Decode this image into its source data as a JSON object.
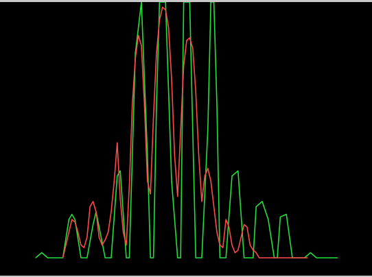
{
  "colors": {
    "background": "#000000",
    "frame": "#c8c8c8",
    "theory_line": "#22e03a",
    "measured_line": "#ff4a4a"
  },
  "chart_data": {
    "type": "line",
    "title": "",
    "xlabel": "",
    "ylabel": "",
    "grid": false,
    "legend": "none",
    "xlim": [
      0,
      1
    ],
    "ylim": [
      0,
      1
    ],
    "series": [
      {
        "color": "#22e03a",
        "x": [
          0.0,
          0.02,
          0.04,
          0.05,
          0.07,
          0.09,
          0.11,
          0.12,
          0.13,
          0.15,
          0.17,
          0.19,
          0.2,
          0.21,
          0.23,
          0.25,
          0.27,
          0.28,
          0.3,
          0.31,
          0.33,
          0.35,
          0.37,
          0.38,
          0.39,
          0.4,
          0.41,
          0.43,
          0.45,
          0.47,
          0.48,
          0.49,
          0.5,
          0.51,
          0.53,
          0.55,
          0.57,
          0.58,
          0.59,
          0.6,
          0.61,
          0.63,
          0.65,
          0.67,
          0.69,
          0.7,
          0.72,
          0.73,
          0.75,
          0.77,
          0.79,
          0.8,
          0.81,
          0.83,
          0.85,
          0.87,
          0.88,
          0.89,
          0.91,
          0.93,
          0.95,
          0.96,
          0.98,
          1.0
        ],
        "y": [
          0.0,
          0.02,
          0.0,
          0.0,
          0.0,
          0.0,
          0.15,
          0.17,
          0.15,
          0.0,
          0.0,
          0.13,
          0.18,
          0.12,
          0.0,
          0.0,
          0.32,
          0.34,
          0.0,
          0.0,
          0.8,
          1.0,
          0.4,
          0.0,
          0.0,
          0.6,
          1.0,
          1.0,
          0.3,
          0.0,
          0.0,
          1.0,
          1.0,
          1.0,
          0.0,
          0.0,
          0.5,
          1.0,
          1.0,
          0.6,
          0.0,
          0.0,
          0.32,
          0.34,
          0.0,
          0.0,
          0.0,
          0.2,
          0.22,
          0.15,
          0.0,
          0.0,
          0.16,
          0.17,
          0.0,
          0.0,
          0.0,
          0.0,
          0.02,
          0.0,
          0.0,
          0.0,
          0.0,
          0.0
        ]
      },
      {
        "color": "#ff4a4a",
        "x": [
          0.09,
          0.1,
          0.11,
          0.12,
          0.13,
          0.14,
          0.15,
          0.16,
          0.17,
          0.18,
          0.19,
          0.2,
          0.21,
          0.22,
          0.23,
          0.24,
          0.25,
          0.26,
          0.27,
          0.28,
          0.29,
          0.3,
          0.31,
          0.32,
          0.33,
          0.34,
          0.35,
          0.36,
          0.37,
          0.38,
          0.39,
          0.4,
          0.41,
          0.42,
          0.43,
          0.44,
          0.45,
          0.46,
          0.47,
          0.48,
          0.49,
          0.5,
          0.51,
          0.52,
          0.53,
          0.54,
          0.55,
          0.56,
          0.57,
          0.58,
          0.59,
          0.6,
          0.61,
          0.62,
          0.63,
          0.64,
          0.65,
          0.66,
          0.67,
          0.68,
          0.69,
          0.7,
          0.71,
          0.72,
          0.73,
          0.74,
          0.75,
          0.76,
          0.77,
          0.78,
          0.79,
          0.8,
          0.81,
          0.82,
          0.83,
          0.84,
          0.85,
          0.86,
          0.87,
          0.88,
          0.89,
          0.9
        ],
        "y": [
          0.0,
          0.05,
          0.1,
          0.15,
          0.14,
          0.1,
          0.05,
          0.04,
          0.08,
          0.2,
          0.22,
          0.18,
          0.08,
          0.05,
          0.07,
          0.1,
          0.18,
          0.3,
          0.45,
          0.23,
          0.1,
          0.05,
          0.28,
          0.6,
          0.78,
          0.87,
          0.83,
          0.6,
          0.3,
          0.25,
          0.55,
          0.8,
          0.93,
          0.98,
          0.97,
          0.9,
          0.7,
          0.4,
          0.24,
          0.5,
          0.75,
          0.85,
          0.86,
          0.82,
          0.65,
          0.4,
          0.22,
          0.32,
          0.35,
          0.3,
          0.2,
          0.1,
          0.05,
          0.04,
          0.15,
          0.12,
          0.05,
          0.02,
          0.03,
          0.08,
          0.13,
          0.12,
          0.05,
          0.03,
          0.02,
          0.0,
          0.0,
          0.0,
          0.0,
          0.0,
          0.0,
          0.0,
          0.0,
          0.0,
          0.0,
          0.0,
          0.0,
          0.0,
          0.0,
          0.0,
          0.0,
          0.0
        ]
      }
    ]
  }
}
